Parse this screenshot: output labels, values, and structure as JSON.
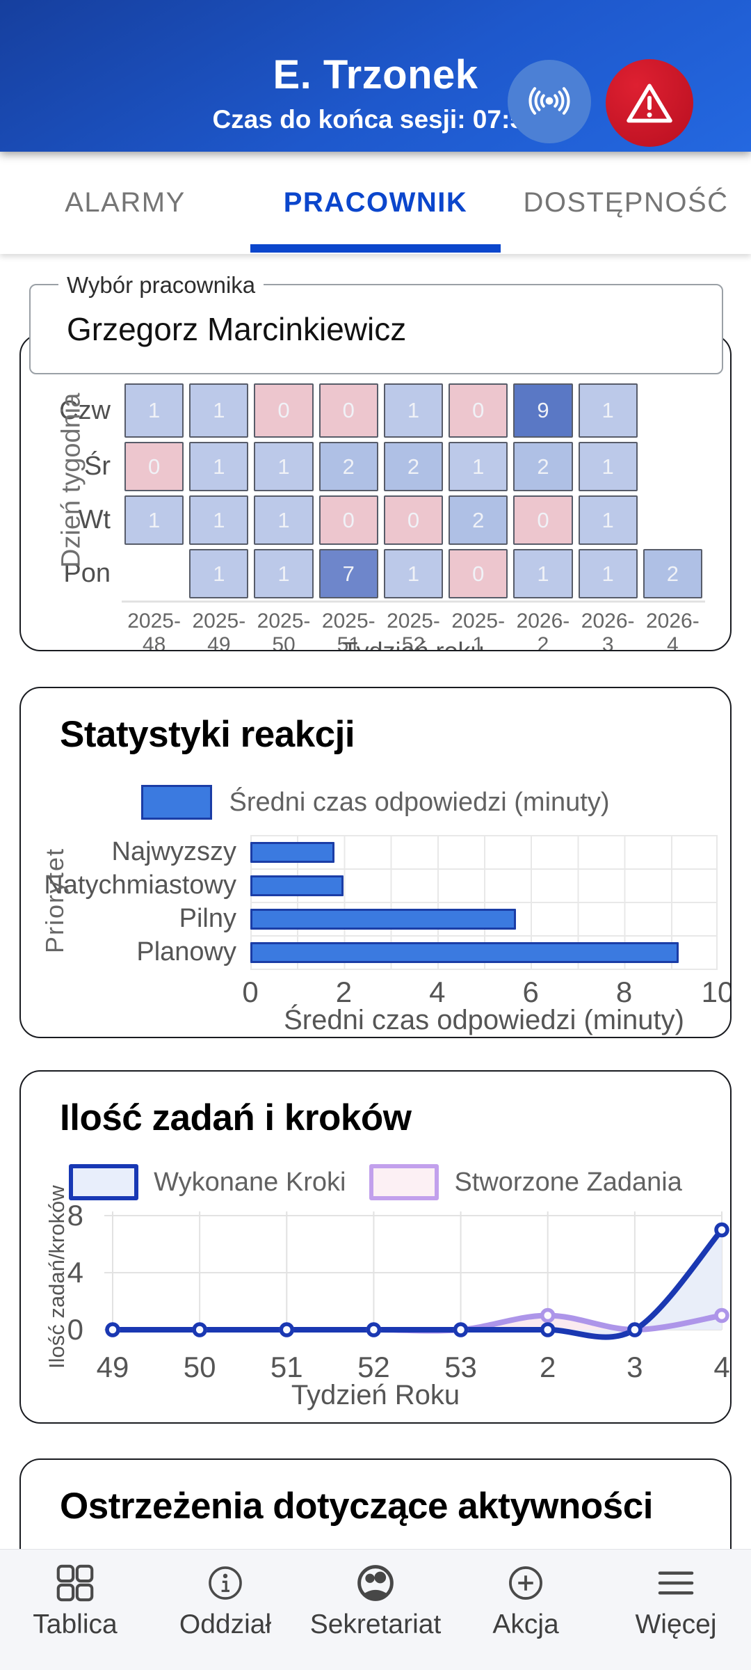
{
  "header": {
    "title": "E. Trzonek",
    "session_text": "Czas do końca sesji: 07:59",
    "accent_color": "#1e58cc",
    "alert_color": "#c8102e"
  },
  "tabs": {
    "items": [
      {
        "label": "ALARMY"
      },
      {
        "label": "PRACOWNIK"
      },
      {
        "label": "DOSTĘPNOŚĆ"
      }
    ],
    "active": "PRACOWNIK",
    "active_color": "#0b46cc"
  },
  "employee_select": {
    "label": "Wybór pracownika",
    "value": "Grzegorz Marcinkiewicz"
  },
  "reaction_stats": {
    "title": "Statystyki reakcji",
    "legend": "Średni czas odpowiedzi (minuty)"
  },
  "tasks_chart": {
    "title": "Ilość zadań i kroków"
  },
  "warnings_card": {
    "title": "Ostrzeżenia dotyczące aktywności"
  },
  "chart_data": [
    {
      "type": "heatmap",
      "ylabel": "Dzień tygodnia",
      "xlabel": "Tydzień roku",
      "rows": [
        "Czw",
        "Śr",
        "Wt",
        "Pon"
      ],
      "columns": [
        "2025-48",
        "2025-49",
        "2025-50",
        "2025-51",
        "2025-52",
        "2025-1",
        "2026-2",
        "2026-3",
        "2026-4"
      ],
      "values": [
        [
          1,
          1,
          0,
          0,
          1,
          0,
          9,
          1,
          null
        ],
        [
          0,
          1,
          1,
          2,
          2,
          1,
          2,
          1,
          null
        ],
        [
          1,
          1,
          1,
          0,
          0,
          2,
          0,
          1,
          null
        ],
        [
          null,
          1,
          1,
          7,
          1,
          0,
          1,
          1,
          2
        ]
      ],
      "value_colors": {
        "0": "#edc6ce",
        "1": "#bcc9e9",
        "2": "#afc0e5",
        "7": "#6e86cb",
        "9": "#5a78c5"
      }
    },
    {
      "type": "bar",
      "orientation": "horizontal",
      "title": "Statystyki reakcji",
      "categories": [
        "Najwyzszy",
        "Natychmiastowy",
        "Pilny",
        "Planowy"
      ],
      "values": [
        1.8,
        2.0,
        5.7,
        9.2
      ],
      "xlabel": "Średni czas odpowiedzi (minuty)",
      "ylabel": "Priorytet",
      "xlim": [
        0,
        10
      ],
      "xticks": [
        0,
        2,
        4,
        6,
        8,
        10
      ],
      "bar_color": "#3b7ae0",
      "bar_border": "#1b3da6",
      "legend": "Średni czas odpowiedzi (minuty)",
      "grid": true
    },
    {
      "type": "line",
      "title": "Ilość zadań i kroków",
      "x": [
        "49",
        "50",
        "51",
        "52",
        "53",
        "2",
        "3",
        "4"
      ],
      "series": [
        {
          "name": "Wykonane Kroki",
          "values": [
            0,
            0,
            0,
            0,
            0,
            0,
            0,
            7
          ],
          "color": "#1a38b2",
          "fill": "#e9eef9",
          "legend_border": "#1838b4",
          "legend_fill": "#e8eefb"
        },
        {
          "name": "Stworzone Zadania",
          "values": [
            0,
            0,
            0,
            0,
            0,
            1,
            0,
            1
          ],
          "color": "#ad95e9",
          "fill": "#faeaf0",
          "legend_border": "#c2a0ec",
          "legend_fill": "#fcf0f4"
        }
      ],
      "xlabel": "Tydzień Roku",
      "ylabel": "Ilość zadań/kroków",
      "yticks": [
        0,
        4,
        8
      ],
      "ylim": [
        0,
        8.3
      ],
      "grid": true,
      "legend_position": "top"
    }
  ],
  "nav": {
    "items": [
      {
        "label": "Tablica",
        "icon": "dashboard-grid-icon"
      },
      {
        "label": "Oddział",
        "icon": "info-icon"
      },
      {
        "label": "Sekretariat",
        "icon": "contacts-icon"
      },
      {
        "label": "Akcja",
        "icon": "plus-circle-icon"
      },
      {
        "label": "Więcej",
        "icon": "menu-icon"
      }
    ]
  }
}
